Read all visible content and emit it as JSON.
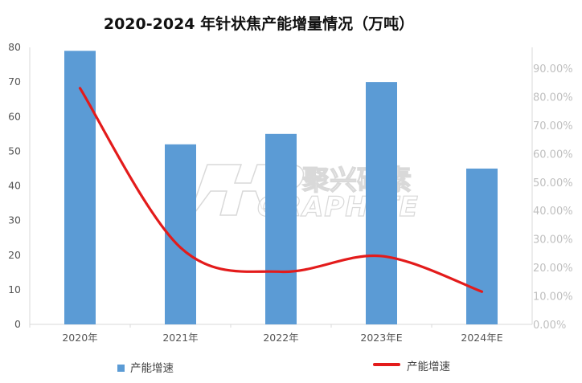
{
  "watermark": {
    "cn": "聚兴碳素",
    "en": "GRAPHITE"
  },
  "colors": {
    "bar": "#5b9bd5",
    "line": "#e31b1b",
    "axis": "#d9d9d9"
  },
  "chart_data": {
    "type": "bar",
    "title": "2020-2024 年针状焦产能增量情况（万吨）",
    "categories": [
      "2020年",
      "2021年",
      "2022年",
      "2023年E",
      "2024年E"
    ],
    "series": [
      {
        "name": "产能增速",
        "type": "bar",
        "axis": "left",
        "values": [
          79,
          52,
          55,
          70,
          45
        ]
      },
      {
        "name": "产能增速",
        "type": "line",
        "axis": "right",
        "smooth": true,
        "values": [
          0.83,
          0.27,
          0.185,
          0.24,
          0.115
        ]
      }
    ],
    "y_left": {
      "min": 0,
      "max": 80,
      "ticks": [
        "0",
        "10",
        "20",
        "30",
        "40",
        "50",
        "60",
        "70",
        "80"
      ]
    },
    "y_right": {
      "min": 0,
      "max": 0.9,
      "ticks": [
        "0.00%",
        "10.00%",
        "20.00%",
        "30.00%",
        "40.00%",
        "50.00%",
        "60.00%",
        "70.00%",
        "80.00%",
        "90.00%"
      ]
    },
    "grid": false,
    "legend": {
      "position": "bottom",
      "items": [
        "产能增速",
        "产能增速"
      ]
    }
  }
}
